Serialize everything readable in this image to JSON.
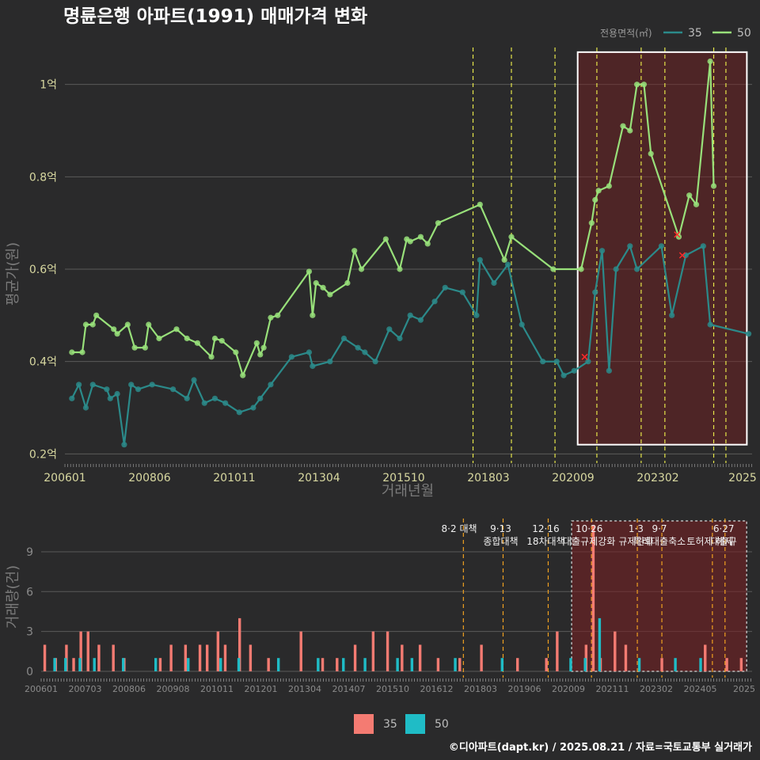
{
  "chart_data": [
    {
      "type": "line",
      "title": "명륜은행 아파트(1991) 매매가격 변화",
      "xlabel": "거래년월",
      "ylabel": "평균가(원)",
      "x_ticks": [
        "200601",
        "200806",
        "201011",
        "201304",
        "201510",
        "201803",
        "202009",
        "202302",
        "2025"
      ],
      "y_ticks": [
        {
          "v": 0.2,
          "label": "0.2억"
        },
        {
          "v": 0.4,
          "label": "0.4억"
        },
        {
          "v": 0.6,
          "label": "0.6억"
        },
        {
          "v": 0.8,
          "label": "0.8억"
        },
        {
          "v": 1.0,
          "label": "1억"
        }
      ],
      "ylim": [
        0.18,
        1.08
      ],
      "xlim": [
        2005.9,
        2025.6
      ],
      "legend": {
        "title": "전용면적(㎡)",
        "placement": "top-right",
        "items": [
          {
            "name": "35",
            "color": "#2b8a8a"
          },
          {
            "name": "50",
            "color": "#98e07a"
          }
        ]
      },
      "series": [
        {
          "name": "50",
          "color": "#98e07a",
          "points": [
            [
              2006.1,
              0.42
            ],
            [
              2006.4,
              0.42
            ],
            [
              2006.5,
              0.48
            ],
            [
              2006.7,
              0.48
            ],
            [
              2006.8,
              0.5
            ],
            [
              2007.3,
              0.47
            ],
            [
              2007.4,
              0.46
            ],
            [
              2007.7,
              0.48
            ],
            [
              2007.9,
              0.43
            ],
            [
              2008.2,
              0.43
            ],
            [
              2008.3,
              0.48
            ],
            [
              2008.6,
              0.45
            ],
            [
              2009.1,
              0.47
            ],
            [
              2009.4,
              0.45
            ],
            [
              2009.7,
              0.44
            ],
            [
              2010.1,
              0.41
            ],
            [
              2010.2,
              0.45
            ],
            [
              2010.4,
              0.445
            ],
            [
              2010.8,
              0.42
            ],
            [
              2011.0,
              0.37
            ],
            [
              2011.4,
              0.44
            ],
            [
              2011.5,
              0.415
            ],
            [
              2011.6,
              0.43
            ],
            [
              2011.8,
              0.495
            ],
            [
              2012.0,
              0.5
            ],
            [
              2012.9,
              0.595
            ],
            [
              2013.0,
              0.5
            ],
            [
              2013.1,
              0.57
            ],
            [
              2013.3,
              0.56
            ],
            [
              2013.5,
              0.545
            ],
            [
              2014.0,
              0.57
            ],
            [
              2014.2,
              0.64
            ],
            [
              2014.4,
              0.6
            ],
            [
              2015.1,
              0.665
            ],
            [
              2015.5,
              0.6
            ],
            [
              2015.7,
              0.665
            ],
            [
              2015.8,
              0.66
            ],
            [
              2016.1,
              0.67
            ],
            [
              2016.3,
              0.655
            ],
            [
              2016.6,
              0.7
            ],
            [
              2017.8,
              0.74
            ],
            [
              2018.5,
              0.62
            ],
            [
              2018.7,
              0.67
            ],
            [
              2019.9,
              0.6
            ],
            [
              2020.7,
              0.6
            ],
            [
              2021.0,
              0.7
            ],
            [
              2021.1,
              0.75
            ],
            [
              2021.2,
              0.77
            ],
            [
              2021.5,
              0.78
            ],
            [
              2021.9,
              0.91
            ],
            [
              2022.1,
              0.9
            ],
            [
              2022.3,
              1.0
            ],
            [
              2022.5,
              1.0
            ],
            [
              2022.7,
              0.85
            ],
            [
              2023.5,
              0.67
            ],
            [
              2023.8,
              0.76
            ],
            [
              2024.0,
              0.74
            ],
            [
              2024.4,
              1.05
            ],
            [
              2024.5,
              0.78
            ]
          ]
        },
        {
          "name": "35",
          "color": "#2b8a8a",
          "points": [
            [
              2006.1,
              0.32
            ],
            [
              2006.3,
              0.35
            ],
            [
              2006.5,
              0.3
            ],
            [
              2006.7,
              0.35
            ],
            [
              2007.1,
              0.34
            ],
            [
              2007.2,
              0.32
            ],
            [
              2007.4,
              0.33
            ],
            [
              2007.6,
              0.22
            ],
            [
              2007.8,
              0.35
            ],
            [
              2008.0,
              0.34
            ],
            [
              2008.4,
              0.35
            ],
            [
              2009.0,
              0.34
            ],
            [
              2009.4,
              0.32
            ],
            [
              2009.6,
              0.36
            ],
            [
              2009.9,
              0.31
            ],
            [
              2010.2,
              0.32
            ],
            [
              2010.5,
              0.31
            ],
            [
              2010.9,
              0.29
            ],
            [
              2011.3,
              0.3
            ],
            [
              2011.5,
              0.32
            ],
            [
              2011.8,
              0.35
            ],
            [
              2012.4,
              0.41
            ],
            [
              2012.9,
              0.42
            ],
            [
              2013.0,
              0.39
            ],
            [
              2013.5,
              0.4
            ],
            [
              2013.9,
              0.45
            ],
            [
              2014.3,
              0.43
            ],
            [
              2014.5,
              0.42
            ],
            [
              2014.8,
              0.4
            ],
            [
              2015.2,
              0.47
            ],
            [
              2015.5,
              0.45
            ],
            [
              2015.8,
              0.5
            ],
            [
              2016.1,
              0.49
            ],
            [
              2016.5,
              0.53
            ],
            [
              2016.8,
              0.56
            ],
            [
              2017.3,
              0.55
            ],
            [
              2017.7,
              0.5
            ],
            [
              2017.8,
              0.62
            ],
            [
              2018.2,
              0.57
            ],
            [
              2018.6,
              0.61
            ],
            [
              2019.0,
              0.48
            ],
            [
              2019.6,
              0.4
            ],
            [
              2020.0,
              0.4
            ],
            [
              2020.2,
              0.37
            ],
            [
              2020.5,
              0.38
            ],
            [
              2020.9,
              0.4
            ],
            [
              2021.1,
              0.55
            ],
            [
              2021.3,
              0.64
            ],
            [
              2021.5,
              0.38
            ],
            [
              2021.7,
              0.6
            ],
            [
              2022.1,
              0.65
            ],
            [
              2022.3,
              0.6
            ],
            [
              2023.0,
              0.65
            ],
            [
              2023.3,
              0.5
            ],
            [
              2023.7,
              0.63
            ],
            [
              2024.2,
              0.65
            ],
            [
              2024.4,
              0.48
            ],
            [
              2025.5,
              0.46
            ]
          ]
        }
      ],
      "policy_dates": [
        2017.6,
        2018.7,
        2019.95,
        2021.15,
        2022.42,
        2023.1,
        2024.5,
        2024.85
      ],
      "highlight": {
        "x_start": 2020.6,
        "x_end": 2025.45,
        "y_start": 0.22,
        "y_end": 1.07
      },
      "markers_x": [
        [
          2020.8,
          0.41
        ],
        [
          2023.6,
          0.63
        ],
        [
          2023.45,
          0.675
        ]
      ]
    },
    {
      "type": "bar",
      "ylabel": "거래량(건)",
      "y_ticks": [
        0,
        3,
        6,
        9
      ],
      "ylim": [
        0,
        11.5
      ],
      "x_ticks": [
        "200601",
        "200703",
        "200806",
        "200908",
        "201011",
        "201201",
        "201304",
        "201407",
        "201510",
        "201612",
        "201803",
        "201906",
        "202009",
        "202111",
        "202302",
        "202405",
        "2025"
      ],
      "legend": [
        {
          "name": "35",
          "color": "#f47b72"
        },
        {
          "name": "50",
          "color": "#1fbcc6"
        }
      ],
      "annotations": [
        {
          "x": 2017.55,
          "lines": [
            "8·2 대책"
          ]
        },
        {
          "x": 2018.7,
          "lines": [
            "9·13",
            "종합대책"
          ]
        },
        {
          "x": 2019.95,
          "lines": [
            "12·16",
            "18차대책"
          ]
        },
        {
          "x": 2021.15,
          "lines": [
            "10·26",
            "대출규제강화"
          ]
        },
        {
          "x": 2022.45,
          "lines": [
            "1·3",
            "규제완화"
          ]
        },
        {
          "x": 2023.1,
          "lines": [
            "9·7",
            "특례대출축소"
          ]
        },
        {
          "x": 2024.5,
          "lines": [
            "",
            "토허제 해제"
          ]
        },
        {
          "x": 2024.88,
          "lines": [
            "6·27",
            "대출규"
          ]
        }
      ],
      "highlight": {
        "x_start": 2020.6,
        "x_end": 2025.45
      },
      "bars_35": [
        [
          2006.0,
          2
        ],
        [
          2006.3,
          1
        ],
        [
          2006.6,
          2
        ],
        [
          2006.8,
          1
        ],
        [
          2007.0,
          3
        ],
        [
          2007.2,
          3
        ],
        [
          2007.5,
          2
        ],
        [
          2007.9,
          2
        ],
        [
          2008.2,
          1
        ],
        [
          2009.2,
          1
        ],
        [
          2009.5,
          2
        ],
        [
          2009.9,
          2
        ],
        [
          2010.3,
          2
        ],
        [
          2010.5,
          2
        ],
        [
          2010.8,
          3
        ],
        [
          2011.0,
          2
        ],
        [
          2011.4,
          4
        ],
        [
          2011.7,
          2
        ],
        [
          2012.2,
          1
        ],
        [
          2013.1,
          3
        ],
        [
          2013.7,
          1
        ],
        [
          2014.1,
          1
        ],
        [
          2014.6,
          2
        ],
        [
          2015.1,
          3
        ],
        [
          2015.5,
          3
        ],
        [
          2015.9,
          2
        ],
        [
          2016.4,
          2
        ],
        [
          2016.9,
          1
        ],
        [
          2017.5,
          1
        ],
        [
          2018.1,
          2
        ],
        [
          2019.1,
          1
        ],
        [
          2019.9,
          1
        ],
        [
          2020.2,
          3
        ],
        [
          2021.0,
          2
        ],
        [
          2021.2,
          11
        ],
        [
          2021.4,
          1
        ],
        [
          2021.8,
          3
        ],
        [
          2022.1,
          2
        ],
        [
          2023.1,
          1
        ],
        [
          2024.3,
          2
        ],
        [
          2024.9,
          1
        ],
        [
          2025.3,
          1
        ]
      ],
      "bars_50": [
        [
          2006.2,
          1
        ],
        [
          2006.5,
          1
        ],
        [
          2006.9,
          1
        ],
        [
          2007.3,
          1
        ],
        [
          2008.1,
          1
        ],
        [
          2009.0,
          1
        ],
        [
          2009.9,
          1
        ],
        [
          2010.8,
          1
        ],
        [
          2011.3,
          1
        ],
        [
          2012.4,
          1
        ],
        [
          2013.5,
          1
        ],
        [
          2014.2,
          1
        ],
        [
          2014.8,
          1
        ],
        [
          2015.7,
          1
        ],
        [
          2016.1,
          1
        ],
        [
          2017.3,
          1
        ],
        [
          2018.6,
          1
        ],
        [
          2020.5,
          1
        ],
        [
          2020.9,
          1
        ],
        [
          2021.3,
          4
        ],
        [
          2022.4,
          1
        ],
        [
          2023.4,
          1
        ],
        [
          2024.1,
          1
        ]
      ]
    }
  ],
  "footer": "©디아파트(dapt.kr) / 2025.08.21 / 자료=국토교통부 실거래가"
}
